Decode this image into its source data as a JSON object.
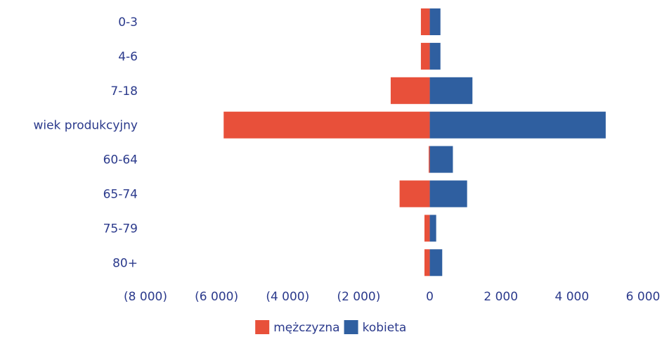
{
  "chart_data": {
    "type": "bar",
    "orientation": "horizontal",
    "layout": "population-pyramid",
    "categories": [
      "0-3",
      "4-6",
      "7-18",
      "wiek produkcyjny",
      "60-64",
      "65-74",
      "75-79",
      "80+"
    ],
    "series": [
      {
        "name": "mężczyzna",
        "color": "#e8503a",
        "values": [
          -250,
          -250,
          -1100,
          -5800,
          -30,
          -850,
          -150,
          -150
        ]
      },
      {
        "name": "kobieta",
        "color": "#2f5fa0",
        "values": [
          300,
          300,
          1200,
          4950,
          650,
          1050,
          180,
          350
        ]
      }
    ],
    "xlim": [
      -8000,
      6000
    ],
    "xticks": [
      -8000,
      -6000,
      -4000,
      -2000,
      0,
      2000,
      4000,
      6000
    ],
    "xtick_labels": [
      "(8 000)",
      "(6 000)",
      "(4 000)",
      "(2 000)",
      "0",
      "2 000",
      "4 000",
      "6 000"
    ],
    "legend_position": "bottom-center",
    "grid": false,
    "title": "",
    "xlabel": "",
    "ylabel": ""
  }
}
